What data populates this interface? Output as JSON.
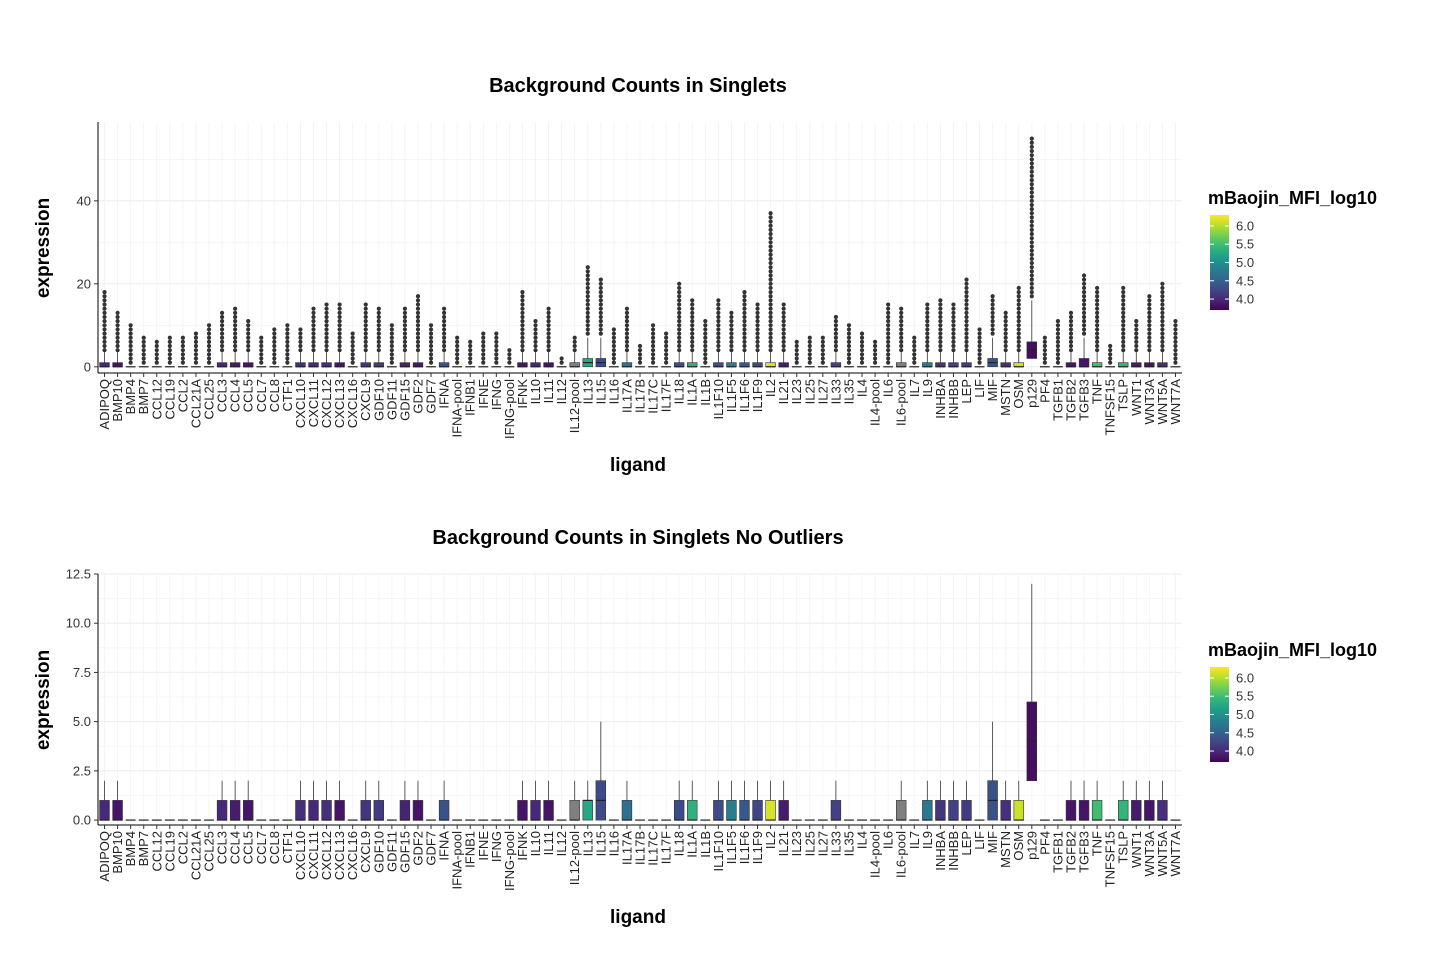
{
  "chart_data": [
    {
      "type": "box",
      "title": "Background Counts in Singlets",
      "xlabel": "ligand",
      "ylabel": "expression",
      "ylim": [
        -1.5,
        59
      ],
      "yticks": [
        0,
        20,
        40
      ],
      "ytick_labels": [
        "0",
        "20",
        "40"
      ],
      "categories": [
        "ADIPOQ",
        "BMP10",
        "BMP4",
        "BMP7",
        "CCL12",
        "CCL19",
        "CCL2",
        "CCL21A",
        "CCL25",
        "CCL3",
        "CCL4",
        "CCL5",
        "CCL7",
        "CCL8",
        "CTF1",
        "CXCL10",
        "CXCL11",
        "CXCL12",
        "CXCL13",
        "CXCL16",
        "CXCL9",
        "GDF10",
        "GDF11",
        "GDF15",
        "GDF2",
        "GDF7",
        "IFNA",
        "IFNA-pool",
        "IFNB1",
        "IFNE",
        "IFNG",
        "IFNG-pool",
        "IFNK",
        "IL10",
        "IL11",
        "IL12",
        "IL12-pool",
        "IL13",
        "IL15",
        "IL16",
        "IL17A",
        "IL17B",
        "IL17C",
        "IL17F",
        "IL18",
        "IL1A",
        "IL1B",
        "IL1F10",
        "IL1F5",
        "IL1F6",
        "IL1F9",
        "IL2",
        "IL21",
        "IL23",
        "IL25",
        "IL27",
        "IL33",
        "IL35",
        "IL4",
        "IL4-pool",
        "IL6",
        "IL6-pool",
        "IL7",
        "IL9",
        "INHBA",
        "INHBB",
        "LEP",
        "LIF",
        "MIF",
        "MSTN",
        "OSM",
        "p129",
        "PF4",
        "TGFB1",
        "TGFB2",
        "TGFB3",
        "TNF",
        "TNFSF15",
        "TSLP",
        "WNT1",
        "WNT3A",
        "WNT5A",
        "WNT7A"
      ],
      "q1": [
        0,
        0,
        0,
        0,
        0,
        0,
        0,
        0,
        0,
        0,
        0,
        0,
        0,
        0,
        0,
        0,
        0,
        0,
        0,
        0,
        0,
        0,
        0,
        0,
        0,
        0,
        0,
        0,
        0,
        0,
        0,
        0,
        0,
        0,
        0,
        0,
        0,
        0,
        0,
        0,
        0,
        0,
        0,
        0,
        0,
        0,
        0,
        0,
        0,
        0,
        0,
        0,
        0,
        0,
        0,
        0,
        0,
        0,
        0,
        0,
        0,
        0,
        0,
        0,
        0,
        0,
        0,
        0,
        0,
        0,
        0,
        2,
        0,
        0,
        0,
        0,
        0,
        0,
        0,
        0,
        0,
        0,
        0
      ],
      "median": [
        0,
        0,
        0,
        0,
        0,
        0,
        0,
        0,
        0,
        0,
        0,
        0,
        0,
        0,
        0,
        0,
        0,
        0,
        0,
        0,
        0,
        0,
        0,
        0,
        0,
        0,
        0,
        0,
        0,
        0,
        0,
        0,
        0,
        0,
        0,
        0,
        0,
        1,
        1,
        0,
        0,
        0,
        0,
        0,
        0,
        0,
        0,
        0,
        0,
        0,
        0,
        0,
        0,
        0,
        0,
        0,
        0,
        0,
        0,
        0,
        0,
        0,
        0,
        0,
        0,
        0,
        0,
        0,
        1,
        0,
        0,
        4,
        0,
        0,
        0,
        0,
        0,
        0,
        0,
        0,
        0,
        0,
        0
      ],
      "q3": [
        1,
        1,
        0,
        0,
        0,
        0,
        0,
        0,
        0,
        1,
        1,
        1,
        0,
        0,
        0,
        1,
        1,
        1,
        1,
        0,
        1,
        1,
        0,
        1,
        1,
        0,
        1,
        0,
        0,
        0,
        0,
        0,
        1,
        1,
        1,
        0,
        1,
        2,
        2,
        0,
        1,
        0,
        0,
        0,
        1,
        1,
        0,
        1,
        1,
        1,
        1,
        1,
        1,
        0,
        0,
        0,
        1,
        0,
        0,
        0,
        0,
        1,
        0,
        1,
        1,
        1,
        1,
        0,
        2,
        1,
        1,
        6,
        0,
        0,
        1,
        2,
        1,
        0,
        1,
        1,
        1,
        1,
        0
      ],
      "outlier_max": [
        18,
        13,
        10,
        7,
        6,
        7,
        7,
        8,
        10,
        13,
        14,
        11,
        7,
        9,
        10,
        9,
        14,
        15,
        15,
        8,
        15,
        14,
        10,
        14,
        17,
        10,
        14,
        7,
        6,
        8,
        8,
        4,
        18,
        11,
        14,
        2,
        7,
        24,
        21,
        9,
        14,
        5,
        10,
        8,
        20,
        16,
        11,
        16,
        13,
        18,
        15,
        37,
        15,
        6,
        7,
        7,
        12,
        10,
        8,
        6,
        15,
        14,
        7,
        15,
        16,
        15,
        21,
        9,
        17,
        13,
        19,
        55,
        7,
        11,
        13,
        22,
        19,
        5,
        19,
        11,
        17,
        20,
        11
      ],
      "mfi_log10": [
        4.0,
        3.85,
        null,
        null,
        null,
        null,
        null,
        null,
        null,
        4.0,
        3.9,
        3.85,
        null,
        null,
        null,
        4.05,
        4.0,
        4.05,
        3.85,
        null,
        4.1,
        4.15,
        null,
        3.95,
        3.85,
        null,
        4.35,
        null,
        null,
        null,
        null,
        null,
        3.85,
        4.0,
        3.85,
        null,
        null,
        5.25,
        4.3,
        null,
        4.65,
        null,
        null,
        null,
        4.3,
        5.35,
        null,
        4.3,
        4.8,
        4.4,
        4.25,
        6.15,
        3.9,
        null,
        null,
        null,
        4.2,
        null,
        null,
        null,
        null,
        null,
        null,
        4.75,
        4.1,
        4.2,
        4.15,
        null,
        4.35,
        4.05,
        6.1,
        3.8,
        null,
        null,
        3.85,
        3.85,
        5.5,
        null,
        5.4,
        3.9,
        3.85,
        4.05,
        null
      ]
    },
    {
      "type": "box",
      "title": "Background Counts in Singlets No Outliers",
      "xlabel": "ligand",
      "ylabel": "expression",
      "ylim": [
        -0.25,
        12.5
      ],
      "yticks": [
        0,
        2.5,
        5,
        7.5,
        10,
        12.5
      ],
      "ytick_labels": [
        "0.0",
        "2.5",
        "5.0",
        "7.5",
        "10.0",
        "12.5"
      ],
      "categories": [
        "ADIPOQ",
        "BMP10",
        "BMP4",
        "BMP7",
        "CCL12",
        "CCL19",
        "CCL2",
        "CCL21A",
        "CCL25",
        "CCL3",
        "CCL4",
        "CCL5",
        "CCL7",
        "CCL8",
        "CTF1",
        "CXCL10",
        "CXCL11",
        "CXCL12",
        "CXCL13",
        "CXCL16",
        "CXCL9",
        "GDF10",
        "GDF11",
        "GDF15",
        "GDF2",
        "GDF7",
        "IFNA",
        "IFNA-pool",
        "IFNB1",
        "IFNE",
        "IFNG",
        "IFNG-pool",
        "IFNK",
        "IL10",
        "IL11",
        "IL12",
        "IL12-pool",
        "IL13",
        "IL15",
        "IL16",
        "IL17A",
        "IL17B",
        "IL17C",
        "IL17F",
        "IL18",
        "IL1A",
        "IL1B",
        "IL1F10",
        "IL1F5",
        "IL1F6",
        "IL1F9",
        "IL2",
        "IL21",
        "IL23",
        "IL25",
        "IL27",
        "IL33",
        "IL35",
        "IL4",
        "IL4-pool",
        "IL6",
        "IL6-pool",
        "IL7",
        "IL9",
        "INHBA",
        "INHBB",
        "LEP",
        "LIF",
        "MIF",
        "MSTN",
        "OSM",
        "p129",
        "PF4",
        "TGFB1",
        "TGFB2",
        "TGFB3",
        "TNF",
        "TNFSF15",
        "TSLP",
        "WNT1",
        "WNT3A",
        "WNT5A",
        "WNT7A"
      ],
      "q1": [
        0,
        0,
        0,
        0,
        0,
        0,
        0,
        0,
        0,
        0,
        0,
        0,
        0,
        0,
        0,
        0,
        0,
        0,
        0,
        0,
        0,
        0,
        0,
        0,
        0,
        0,
        0,
        0,
        0,
        0,
        0,
        0,
        0,
        0,
        0,
        0,
        0,
        0,
        0,
        0,
        0,
        0,
        0,
        0,
        0,
        0,
        0,
        0,
        0,
        0,
        0,
        0,
        0,
        0,
        0,
        0,
        0,
        0,
        0,
        0,
        0,
        0,
        0,
        0,
        0,
        0,
        0,
        0,
        0,
        0,
        0,
        2,
        0,
        0,
        0,
        0,
        0,
        0,
        0,
        0,
        0,
        0,
        0
      ],
      "median": [
        0,
        0,
        0,
        0,
        0,
        0,
        0,
        0,
        0,
        0,
        0,
        0,
        0,
        0,
        0,
        0,
        0,
        0,
        0,
        0,
        0,
        0,
        0,
        0,
        0,
        0,
        0,
        0,
        0,
        0,
        0,
        0,
        0,
        0,
        0,
        0,
        0,
        1,
        1,
        0,
        0,
        0,
        0,
        0,
        0,
        0,
        0,
        0,
        0,
        0,
        0,
        0,
        0,
        0,
        0,
        0,
        0,
        0,
        0,
        0,
        0,
        0,
        0,
        0,
        0,
        0,
        0,
        0,
        1,
        0,
        0,
        4,
        0,
        0,
        0,
        0,
        0,
        0,
        0,
        0,
        0,
        0,
        0
      ],
      "q3": [
        1,
        1,
        0,
        0,
        0,
        0,
        0,
        0,
        0,
        1,
        1,
        1,
        0,
        0,
        0,
        1,
        1,
        1,
        1,
        0,
        1,
        1,
        0,
        1,
        1,
        0,
        1,
        0,
        0,
        0,
        0,
        0,
        1,
        1,
        1,
        0,
        1,
        1,
        2,
        0,
        1,
        0,
        0,
        0,
        1,
        1,
        0,
        1,
        1,
        1,
        1,
        1,
        1,
        0,
        0,
        0,
        1,
        0,
        0,
        0,
        0,
        1,
        0,
        1,
        1,
        1,
        1,
        0,
        2,
        1,
        1,
        6,
        0,
        0,
        1,
        1,
        1,
        0,
        1,
        1,
        1,
        1,
        0
      ],
      "whisker_max": [
        2,
        2,
        0,
        0,
        0,
        0,
        0,
        0,
        0,
        2,
        2,
        2,
        0,
        0,
        0,
        2,
        2,
        2,
        2,
        0,
        2,
        2,
        0,
        2,
        2,
        0,
        2,
        0,
        0,
        0,
        0,
        0,
        2,
        2,
        2,
        0,
        2,
        2,
        5,
        0,
        2,
        0,
        0,
        0,
        2,
        2,
        0,
        2,
        2,
        2,
        2,
        2,
        2,
        0,
        0,
        0,
        2,
        0,
        0,
        0,
        0,
        2,
        0,
        2,
        2,
        2,
        2,
        0,
        5,
        2,
        2,
        12,
        0,
        0,
        2,
        2,
        2,
        0,
        2,
        2,
        2,
        2,
        0
      ],
      "mfi_log10": [
        4.0,
        3.85,
        null,
        null,
        null,
        null,
        null,
        null,
        null,
        4.0,
        3.9,
        3.85,
        null,
        null,
        null,
        4.05,
        4.0,
        4.05,
        3.85,
        null,
        4.1,
        4.15,
        null,
        3.95,
        3.85,
        null,
        4.35,
        null,
        null,
        null,
        null,
        null,
        3.85,
        4.0,
        3.85,
        null,
        null,
        5.25,
        4.3,
        null,
        4.65,
        null,
        null,
        null,
        4.3,
        5.35,
        null,
        4.3,
        4.8,
        4.4,
        4.25,
        6.15,
        3.9,
        null,
        null,
        null,
        4.2,
        null,
        null,
        null,
        null,
        null,
        null,
        4.75,
        4.1,
        4.2,
        4.15,
        null,
        4.35,
        4.05,
        6.1,
        3.8,
        null,
        null,
        3.85,
        3.85,
        5.5,
        null,
        5.4,
        3.9,
        3.85,
        4.05,
        null
      ]
    }
  ],
  "legend": {
    "title": "mBaojin_MFI_log10",
    "ticks": [
      4.0,
      4.5,
      5.0,
      5.5,
      6.0
    ],
    "tick_labels": [
      "4.0",
      "4.5",
      "5.0",
      "5.5",
      "6.0"
    ],
    "range": [
      3.7,
      6.3
    ],
    "palette": [
      "#440154",
      "#482878",
      "#3e4a89",
      "#31688e",
      "#26828e",
      "#1f9e89",
      "#35b779",
      "#6ece58",
      "#b5de2b",
      "#fde725"
    ],
    "na_color": "#7f7f7f"
  },
  "colors": {
    "grid": "#ebebeb",
    "box_outline": "#333333",
    "outlier": "#333333"
  }
}
